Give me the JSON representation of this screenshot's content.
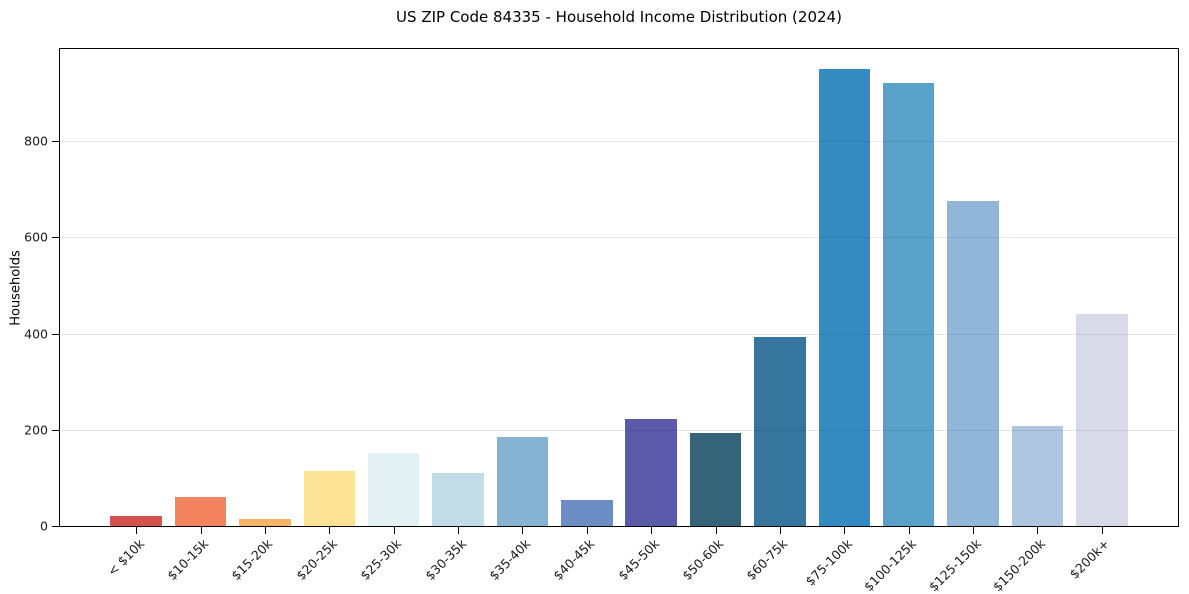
{
  "chart_data": {
    "type": "bar",
    "title": "US ZIP Code 84335 - Household Income Distribution (2024)",
    "ylabel": "Households",
    "xlabel": "",
    "categories": [
      "< $10k",
      "$10-15k",
      "$15-20k",
      "$20-25k",
      "$25-30k",
      "$30-35k",
      "$35-40k",
      "$40-45k",
      "$45-50k",
      "$50-60k",
      "$60-75k",
      "$75-100k",
      "$100-125k",
      "$125-150k",
      "$150-200k",
      "$200k+"
    ],
    "values": [
      21,
      61,
      14,
      115,
      152,
      110,
      185,
      55,
      222,
      194,
      393,
      950,
      922,
      675,
      208,
      440
    ],
    "bar_colors": [
      "#d4524e",
      "#f3835e",
      "#f9b366",
      "#fbe294",
      "#e4f1f4",
      "#c3dde8",
      "#87b3d3",
      "#6c8ec4",
      "#5b5aa9",
      "#35637a",
      "#36759e",
      "#348bc1",
      "#58a2ca",
      "#90b7d7",
      "#afc5e0",
      "#d8dae9"
    ],
    "ylim": [
      0,
      992
    ],
    "yticks": [
      0,
      200,
      400,
      600,
      800
    ],
    "grid": "horizontal",
    "legend": "none"
  },
  "style_colors": {
    "background": "#ffffff",
    "spine": "#000000",
    "gridline": "#e8e8e8",
    "text": "#1a1a1a"
  }
}
